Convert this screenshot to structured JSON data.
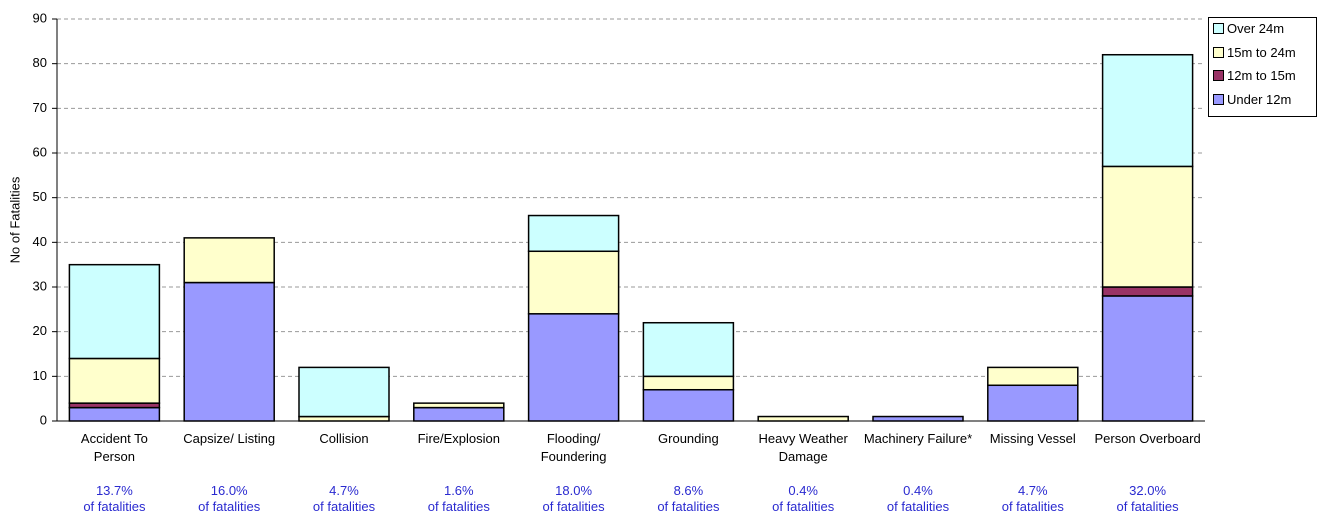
{
  "chart_data": {
    "type": "stacked-bar",
    "y_label": "No of Fatalities",
    "categories": [
      "Accident To Person",
      "Capsize/ Listing",
      "Collision",
      "Fire/Explosion",
      "Flooding/ Foundering",
      "Grounding",
      "Heavy Weather Damage",
      "Machinery Failure*",
      "Missing Vessel",
      "Person Overboard"
    ],
    "shares": [
      "13.7%",
      "16.0%",
      "4.7%",
      "1.6%",
      "18.0%",
      "8.6%",
      "0.4%",
      "0.4%",
      "4.7%",
      "32.0%"
    ],
    "share_note": "of fatalities",
    "series": [
      {
        "name": "Under 12m",
        "color": "#9999ff",
        "values": [
          3,
          31,
          0,
          3,
          24,
          7,
          0,
          1,
          8,
          28
        ]
      },
      {
        "name": "12m to 15m",
        "color": "#993366",
        "values": [
          1,
          0,
          0,
          0,
          0,
          0,
          0,
          0,
          0,
          2
        ]
      },
      {
        "name": "15m to 24m",
        "color": "#ffffcc",
        "values": [
          10,
          10,
          1,
          1,
          14,
          3,
          1,
          0,
          4,
          27
        ]
      },
      {
        "name": "Over 24m",
        "color": "#ccffff",
        "values": [
          21,
          0,
          11,
          0,
          8,
          12,
          0,
          0,
          0,
          25
        ]
      }
    ],
    "ylim": [
      0,
      90
    ],
    "yticks": [
      0,
      10,
      20,
      30,
      40,
      50,
      60,
      70,
      80,
      90
    ],
    "grid": true,
    "legend": "top-right"
  }
}
